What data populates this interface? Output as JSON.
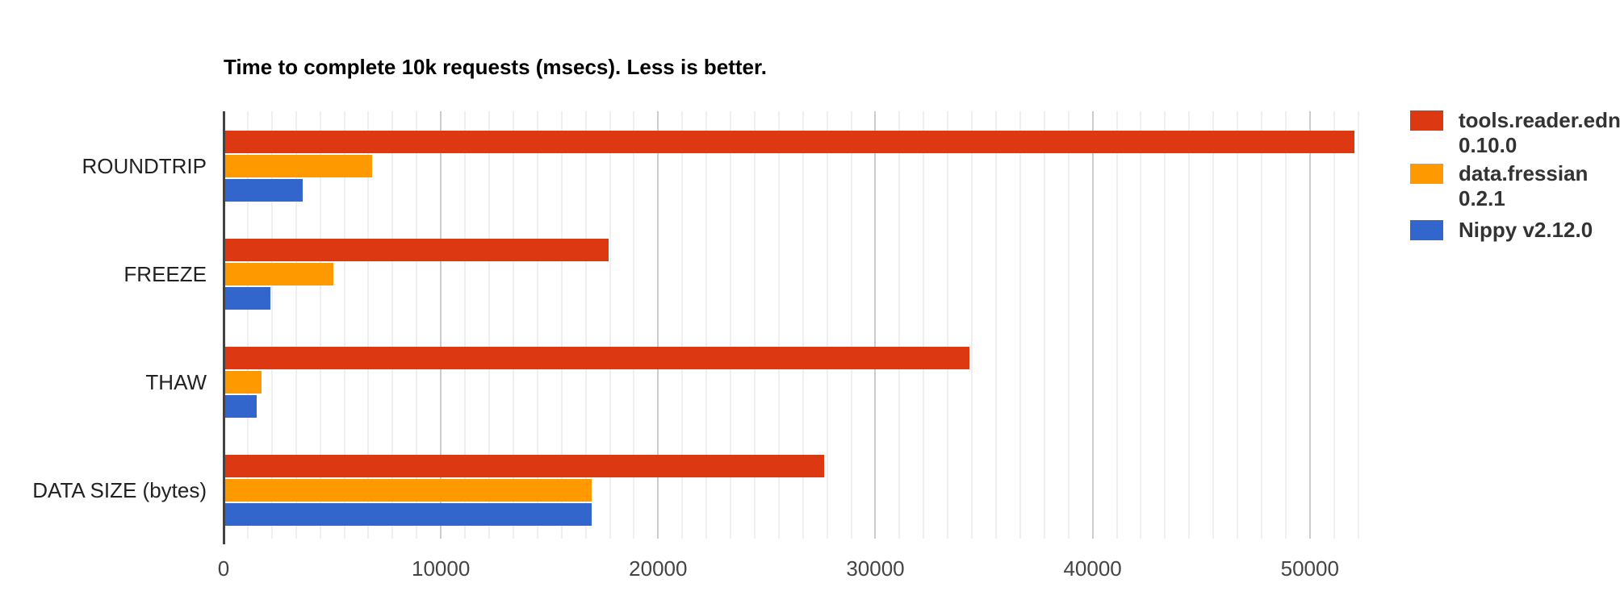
{
  "chart_data": {
    "type": "bar",
    "orientation": "horizontal",
    "title": "Time to complete 10k requests (msecs). Less is better.",
    "categories": [
      "ROUNDTRIP",
      "FREEZE",
      "THAW",
      "DATA SIZE (bytes)"
    ],
    "series": [
      {
        "name": "tools.reader.edn 0.10.0",
        "legend_lines": [
          "tools.reader.edn",
          "0.10.0"
        ],
        "color": "#dc3912",
        "values": [
          52000,
          17700,
          34300,
          27600
        ]
      },
      {
        "name": "data.fressian 0.2.1",
        "legend_lines": [
          "data.fressian",
          "0.2.1"
        ],
        "color": "#ff9900",
        "values": [
          6800,
          5000,
          1700,
          16900
        ]
      },
      {
        "name": "Nippy v2.12.0",
        "legend_lines": [
          "Nippy v2.12.0"
        ],
        "color": "#3366cc",
        "values": [
          3600,
          2100,
          1500,
          16900
        ]
      }
    ],
    "x_ticks": [
      "0",
      "10000",
      "20000",
      "30000",
      "40000",
      "50000"
    ],
    "x_tick_values": [
      0,
      10000,
      20000,
      30000,
      40000,
      50000
    ],
    "xlim": [
      0,
      53500
    ],
    "minor_grid_step": 1111.11,
    "grid": "vertical-only",
    "legend_position": "right",
    "colors": {
      "grid_minor": "#efefef",
      "grid_major": "#cccccc",
      "axis_line": "#424242",
      "title_text": "#000000",
      "category_text": "#222222",
      "tick_text": "#444444",
      "legend_text": "#333333",
      "background": "#ffffff"
    }
  }
}
